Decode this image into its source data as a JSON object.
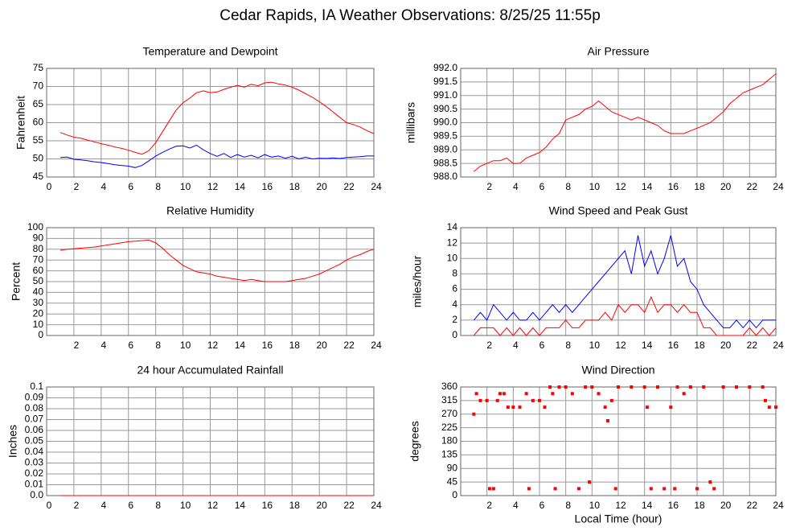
{
  "title": "Cedar Rapids, IA Weather Observations: 8/25/25 11:55p",
  "chart_data": [
    {
      "type": "line",
      "title": "Temperature and Dewpoint",
      "y_label": "Fahrenheit",
      "x": [
        1,
        1.5,
        2,
        2.5,
        3,
        3.5,
        4,
        4.5,
        5,
        5.5,
        6,
        6.5,
        7,
        7.5,
        8,
        8.5,
        9,
        9.5,
        10,
        10.5,
        11,
        11.5,
        12,
        12.5,
        13,
        13.5,
        14,
        14.5,
        15,
        15.5,
        16,
        16.5,
        17,
        17.5,
        18,
        18.5,
        19,
        19.5,
        20,
        20.5,
        21,
        21.5,
        22,
        22.5,
        23,
        23.5,
        24
      ],
      "series": [
        {
          "color": "#ff0000",
          "values": [
            57.3,
            56.6,
            56,
            55.7,
            55.2,
            54.7,
            54.2,
            53.8,
            53.3,
            52.9,
            52.4,
            51.8,
            51.3,
            52.3,
            54.5,
            57.5,
            60.5,
            63.5,
            65.5,
            66.8,
            68.3,
            68.8,
            68.3,
            68.5,
            69.2,
            69.8,
            70.3,
            69.8,
            70.6,
            70.2,
            71,
            71.2,
            70.7,
            70.4,
            69.8,
            69,
            68,
            67,
            65.8,
            64.5,
            63,
            61.5,
            60,
            59.5,
            58.8,
            57.8,
            57
          ]
        },
        {
          "color": "#0000ff",
          "values": [
            50.4,
            50.5,
            49.9,
            49.7,
            49.5,
            49.2,
            49,
            48.7,
            48.4,
            48.2,
            48,
            47.6,
            48.2,
            49.5,
            50.8,
            51.8,
            52.7,
            53.5,
            53.6,
            53,
            53.8,
            52.5,
            51.5,
            50.7,
            51.5,
            50.4,
            51.2,
            50.5,
            51,
            50.3,
            51.2,
            50.5,
            50.8,
            50.2,
            50.7,
            50,
            50.5,
            50,
            50.2,
            50.1,
            50.3,
            50.1,
            50.4,
            50.5,
            50.6,
            50.8,
            50.8
          ]
        }
      ],
      "xlim": [
        0,
        24
      ],
      "xticks": [
        0,
        2,
        4,
        6,
        8,
        10,
        12,
        14,
        16,
        18,
        20,
        22,
        24
      ],
      "ylim": [
        45,
        75
      ],
      "yticks": [
        45,
        50,
        55,
        60,
        65,
        70,
        75
      ],
      "grid": true
    },
    {
      "type": "line",
      "title": "Air Pressure",
      "y_label": "millibars",
      "x": [
        1,
        1.5,
        2,
        2.5,
        3,
        3.5,
        4,
        4.5,
        5,
        5.5,
        6,
        6.5,
        7,
        7.5,
        8,
        8.5,
        9,
        9.5,
        10,
        10.5,
        11,
        11.5,
        12,
        12.5,
        13,
        13.5,
        14,
        14.5,
        15,
        15.5,
        16,
        16.5,
        17,
        17.5,
        18,
        18.5,
        19,
        19.5,
        20,
        20.5,
        21,
        21.5,
        22,
        22.5,
        23,
        23.5,
        24
      ],
      "series": [
        {
          "color": "#ff0000",
          "values": [
            988.2,
            988.4,
            988.5,
            988.6,
            988.6,
            988.7,
            988.5,
            988.5,
            988.7,
            988.8,
            988.9,
            989.1,
            989.4,
            989.6,
            990.1,
            990.2,
            990.3,
            990.5,
            990.6,
            990.8,
            990.6,
            990.4,
            990.3,
            990.2,
            990.1,
            990.2,
            990.1,
            990,
            989.9,
            989.7,
            989.6,
            989.6,
            989.6,
            989.7,
            989.8,
            989.9,
            990,
            990.2,
            990.4,
            990.7,
            990.9,
            991.1,
            991.2,
            991.3,
            991.4,
            991.6,
            991.8
          ]
        }
      ],
      "xlim": [
        0,
        24
      ],
      "xticks": [
        2,
        4,
        6,
        8,
        10,
        12,
        14,
        16,
        18,
        20,
        22,
        24
      ],
      "ylim": [
        988,
        992
      ],
      "yticks": [
        {
          "value": 988,
          "label": "988.0"
        },
        988.5,
        {
          "value": 989,
          "label": "989.0"
        },
        989.5,
        {
          "value": 990,
          "label": "990.0"
        },
        990.5,
        {
          "value": 991,
          "label": "991.0"
        },
        991.5,
        {
          "value": 992,
          "label": "992.0"
        }
      ],
      "grid": true
    },
    {
      "type": "line",
      "title": "Relative Humidity",
      "y_label": "Percent",
      "x": [
        1,
        1.5,
        2,
        2.5,
        3,
        3.5,
        4,
        4.5,
        5,
        5.5,
        6,
        6.5,
        7,
        7.5,
        8,
        8.5,
        9,
        9.5,
        10,
        10.5,
        11,
        11.5,
        12,
        12.5,
        13,
        13.5,
        14,
        14.5,
        15,
        15.5,
        16,
        16.5,
        17,
        17.5,
        18,
        18.5,
        19,
        19.5,
        20,
        20.5,
        21,
        21.5,
        22,
        22.5,
        23,
        23.5,
        24
      ],
      "series": [
        {
          "color": "#ff0000",
          "values": [
            79,
            80,
            80.5,
            81,
            81.5,
            82,
            83,
            84,
            85,
            86,
            87,
            87.5,
            88,
            88.5,
            86,
            81,
            75,
            70,
            65,
            62,
            59,
            58,
            57,
            55,
            54,
            53,
            52,
            51,
            52,
            51,
            50,
            50,
            50,
            50,
            51,
            52,
            53,
            55,
            57,
            60,
            63,
            66,
            70,
            73,
            75,
            78,
            80
          ]
        }
      ],
      "xlim": [
        0,
        24
      ],
      "xticks": [
        2,
        4,
        6,
        8,
        10,
        12,
        14,
        16,
        18,
        20,
        22,
        24
      ],
      "ylim": [
        0,
        100
      ],
      "yticks": [
        0,
        10,
        20,
        30,
        40,
        50,
        60,
        70,
        80,
        90,
        100
      ],
      "grid": true
    },
    {
      "type": "line",
      "title": "Wind Speed and Peak Gust",
      "y_label": "miles/hour",
      "x": [
        1,
        1.5,
        2,
        2.5,
        3,
        3.5,
        4,
        4.5,
        5,
        5.5,
        6,
        6.5,
        7,
        7.5,
        8,
        8.5,
        9,
        9.5,
        10,
        10.5,
        11,
        11.5,
        12,
        12.5,
        13,
        13.5,
        14,
        14.5,
        15,
        15.5,
        16,
        16.5,
        17,
        17.5,
        18,
        18.5,
        19,
        19.5,
        20,
        20.5,
        21,
        21.5,
        22,
        22.5,
        23,
        23.5,
        24
      ],
      "series": [
        {
          "color": "#0000ff",
          "values": [
            2,
            3,
            2,
            4,
            3,
            2,
            3,
            2,
            2,
            3,
            2,
            3,
            4,
            3,
            4,
            3,
            4,
            5,
            6,
            7,
            8,
            9,
            10,
            11,
            8,
            13,
            9,
            11,
            8,
            10,
            13,
            9,
            10,
            7,
            6,
            4,
            3,
            2,
            1,
            1,
            2,
            1,
            2,
            1,
            2,
            2,
            2
          ]
        },
        {
          "color": "#ff0000",
          "values": [
            0,
            1,
            1,
            1,
            0,
            1,
            0,
            1,
            0,
            1,
            0,
            1,
            1,
            1,
            2,
            1,
            1,
            2,
            2,
            2,
            3,
            2,
            4,
            3,
            4,
            4,
            3,
            5,
            3,
            4,
            4,
            3,
            4,
            3,
            3,
            1,
            1,
            0,
            0,
            0,
            0,
            0,
            1,
            0,
            1,
            0,
            1
          ]
        }
      ],
      "xlim": [
        0,
        24
      ],
      "xticks": [
        2,
        4,
        6,
        8,
        10,
        12,
        14,
        16,
        18,
        20,
        22,
        24
      ],
      "ylim": [
        0,
        14
      ],
      "yticks": [
        0,
        2,
        4,
        6,
        8,
        10,
        12,
        14
      ],
      "grid": true
    },
    {
      "type": "line",
      "title": "24 hour Accumulated Rainfall",
      "y_label": "Inches",
      "x": [
        1,
        24
      ],
      "series": [
        {
          "color": "#ff0000",
          "values": [
            0,
            0
          ]
        }
      ],
      "xlim": [
        0,
        24
      ],
      "xticks": [
        0,
        2,
        4,
        6,
        8,
        10,
        12,
        14,
        16,
        18,
        20,
        22,
        24
      ],
      "ylim": [
        0,
        0.1
      ],
      "yticks": [
        {
          "value": 0,
          "label": "0.0"
        },
        0.01,
        0.02,
        0.03,
        0.04,
        0.05,
        0.06,
        0.07,
        0.08,
        0.09,
        0.1
      ],
      "grid": true
    },
    {
      "type": "scatter",
      "title": "Wind Direction",
      "y_label": "degrees",
      "x_label": "Local Time (hour)",
      "x": [
        1,
        1.2,
        1.5,
        2,
        2.2,
        2.5,
        2.8,
        3,
        3.3,
        3.6,
        4,
        4.5,
        5,
        5.2,
        5.5,
        6,
        6.4,
        6.8,
        7,
        7.2,
        7.5,
        8,
        8.5,
        9,
        9.5,
        9.8,
        10,
        10.5,
        11,
        11.2,
        11.5,
        11.8,
        12,
        13,
        14,
        14.2,
        14.5,
        15,
        15.5,
        16,
        16.3,
        16.5,
        17,
        17.5,
        18,
        18.5,
        19,
        19.3,
        20,
        21,
        22,
        23,
        23.2,
        23.5,
        24
      ],
      "series": [
        {
          "color": "#ff0000",
          "values": [
            270,
            338,
            315,
            315,
            23,
            23,
            315,
            338,
            338,
            293,
            293,
            293,
            338,
            23,
            315,
            315,
            293,
            360,
            338,
            23,
            360,
            360,
            338,
            23,
            360,
            45,
            360,
            338,
            293,
            248,
            315,
            23,
            360,
            360,
            360,
            293,
            23,
            360,
            23,
            293,
            23,
            360,
            338,
            360,
            23,
            360,
            45,
            23,
            360,
            360,
            360,
            360,
            315,
            293,
            293
          ]
        }
      ],
      "xlim": [
        0,
        24
      ],
      "xticks": [
        2,
        4,
        6,
        8,
        10,
        12,
        14,
        16,
        18,
        20,
        22,
        24
      ],
      "ylim": [
        0,
        360
      ],
      "yticks": [
        0,
        45,
        90,
        135,
        180,
        225,
        270,
        315,
        360
      ],
      "grid": true
    }
  ]
}
